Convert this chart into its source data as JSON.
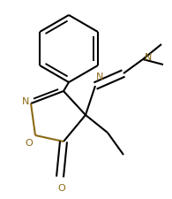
{
  "bg_color": "#ffffff",
  "bond_color": "#000000",
  "heteroatom_color": "#8B6914",
  "lw": 1.5,
  "dbo": 0.012,
  "fig_width": 1.95,
  "fig_height": 2.25,
  "dpi": 100,
  "xlim": [
    0,
    195
  ],
  "ylim": [
    0,
    225
  ]
}
